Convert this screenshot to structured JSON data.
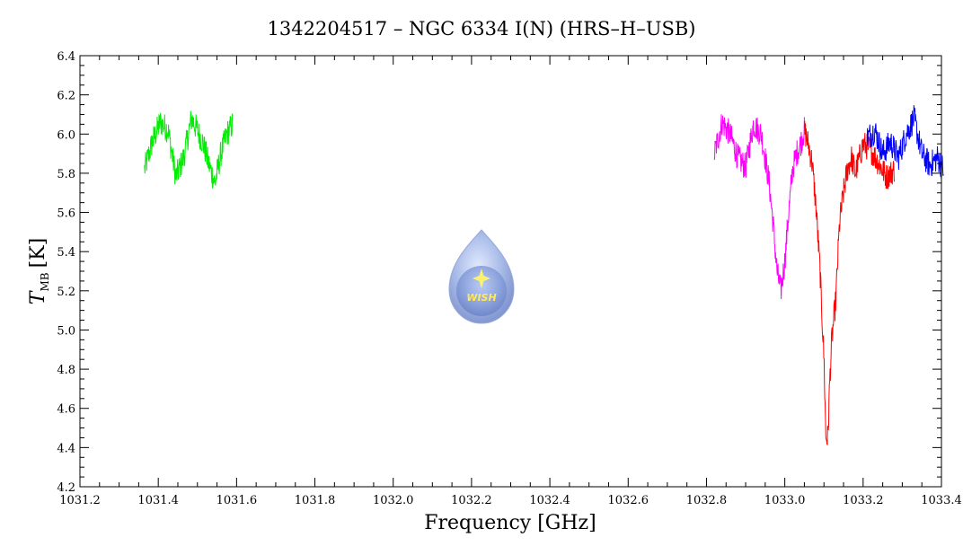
{
  "chart_data": {
    "type": "line",
    "title": "1342204517 – NGC 6334 I(N) (HRS–H–USB)",
    "xlabel": "Frequency [GHz]",
    "ylabel_main": "T",
    "ylabel_sub": "MB",
    "ylabel_unit": "[K]",
    "xlim": [
      1031.2,
      1033.4
    ],
    "ylim": [
      4.2,
      6.4
    ],
    "xticks": [
      "1031.2",
      "1031.4",
      "1031.6",
      "1031.8",
      "1032.0",
      "1032.2",
      "1032.4",
      "1032.6",
      "1032.8",
      "1033.0",
      "1033.2",
      "1033.4"
    ],
    "yticks": [
      "4.2",
      "4.4",
      "4.6",
      "4.8",
      "5.0",
      "5.2",
      "5.4",
      "5.6",
      "5.8",
      "6.0",
      "6.2",
      "6.4"
    ],
    "logo_text": "WISH",
    "series": [
      {
        "color": "#00ee00",
        "x": [
          1031.365,
          1031.385,
          1031.405,
          1031.425,
          1031.445,
          1031.465,
          1031.485,
          1031.5,
          1031.515,
          1031.53,
          1031.545,
          1031.56,
          1031.575,
          1031.59
        ],
        "y": [
          5.82,
          5.96,
          6.06,
          6.02,
          5.78,
          5.88,
          6.08,
          6.02,
          5.95,
          5.84,
          5.75,
          5.9,
          6.0,
          6.05
        ]
      },
      {
        "color": "#ff00ff",
        "x": [
          1032.82,
          1032.84,
          1032.86,
          1032.88,
          1032.9,
          1032.92,
          1032.94,
          1032.96,
          1032.97,
          1032.98,
          1032.99,
          1033.0,
          1033.01,
          1033.02,
          1033.03,
          1033.04,
          1033.05
        ],
        "y": [
          5.9,
          6.06,
          6.0,
          5.88,
          5.83,
          6.05,
          6.0,
          5.75,
          5.55,
          5.3,
          5.2,
          5.35,
          5.6,
          5.82,
          5.9,
          5.95,
          6.02
        ]
      },
      {
        "color": "#ff0000",
        "x": [
          1033.05,
          1033.06,
          1033.07,
          1033.08,
          1033.09,
          1033.1,
          1033.105,
          1033.11,
          1033.115,
          1033.12,
          1033.13,
          1033.14,
          1033.15,
          1033.16,
          1033.17,
          1033.18,
          1033.2,
          1033.22,
          1033.24,
          1033.26,
          1033.28
        ],
        "y": [
          6.02,
          5.95,
          5.85,
          5.62,
          5.3,
          4.85,
          4.45,
          4.45,
          4.75,
          4.95,
          5.15,
          5.55,
          5.7,
          5.82,
          5.88,
          5.8,
          5.95,
          5.92,
          5.85,
          5.78,
          5.82
        ]
      },
      {
        "color": "#0000ff",
        "x": [
          1033.21,
          1033.23,
          1033.25,
          1033.27,
          1033.29,
          1033.31,
          1033.33,
          1033.35,
          1033.37,
          1033.39,
          1033.405
        ],
        "y": [
          5.98,
          6.02,
          5.9,
          5.96,
          5.88,
          6.0,
          6.08,
          5.9,
          5.84,
          5.88,
          5.82
        ]
      }
    ]
  }
}
